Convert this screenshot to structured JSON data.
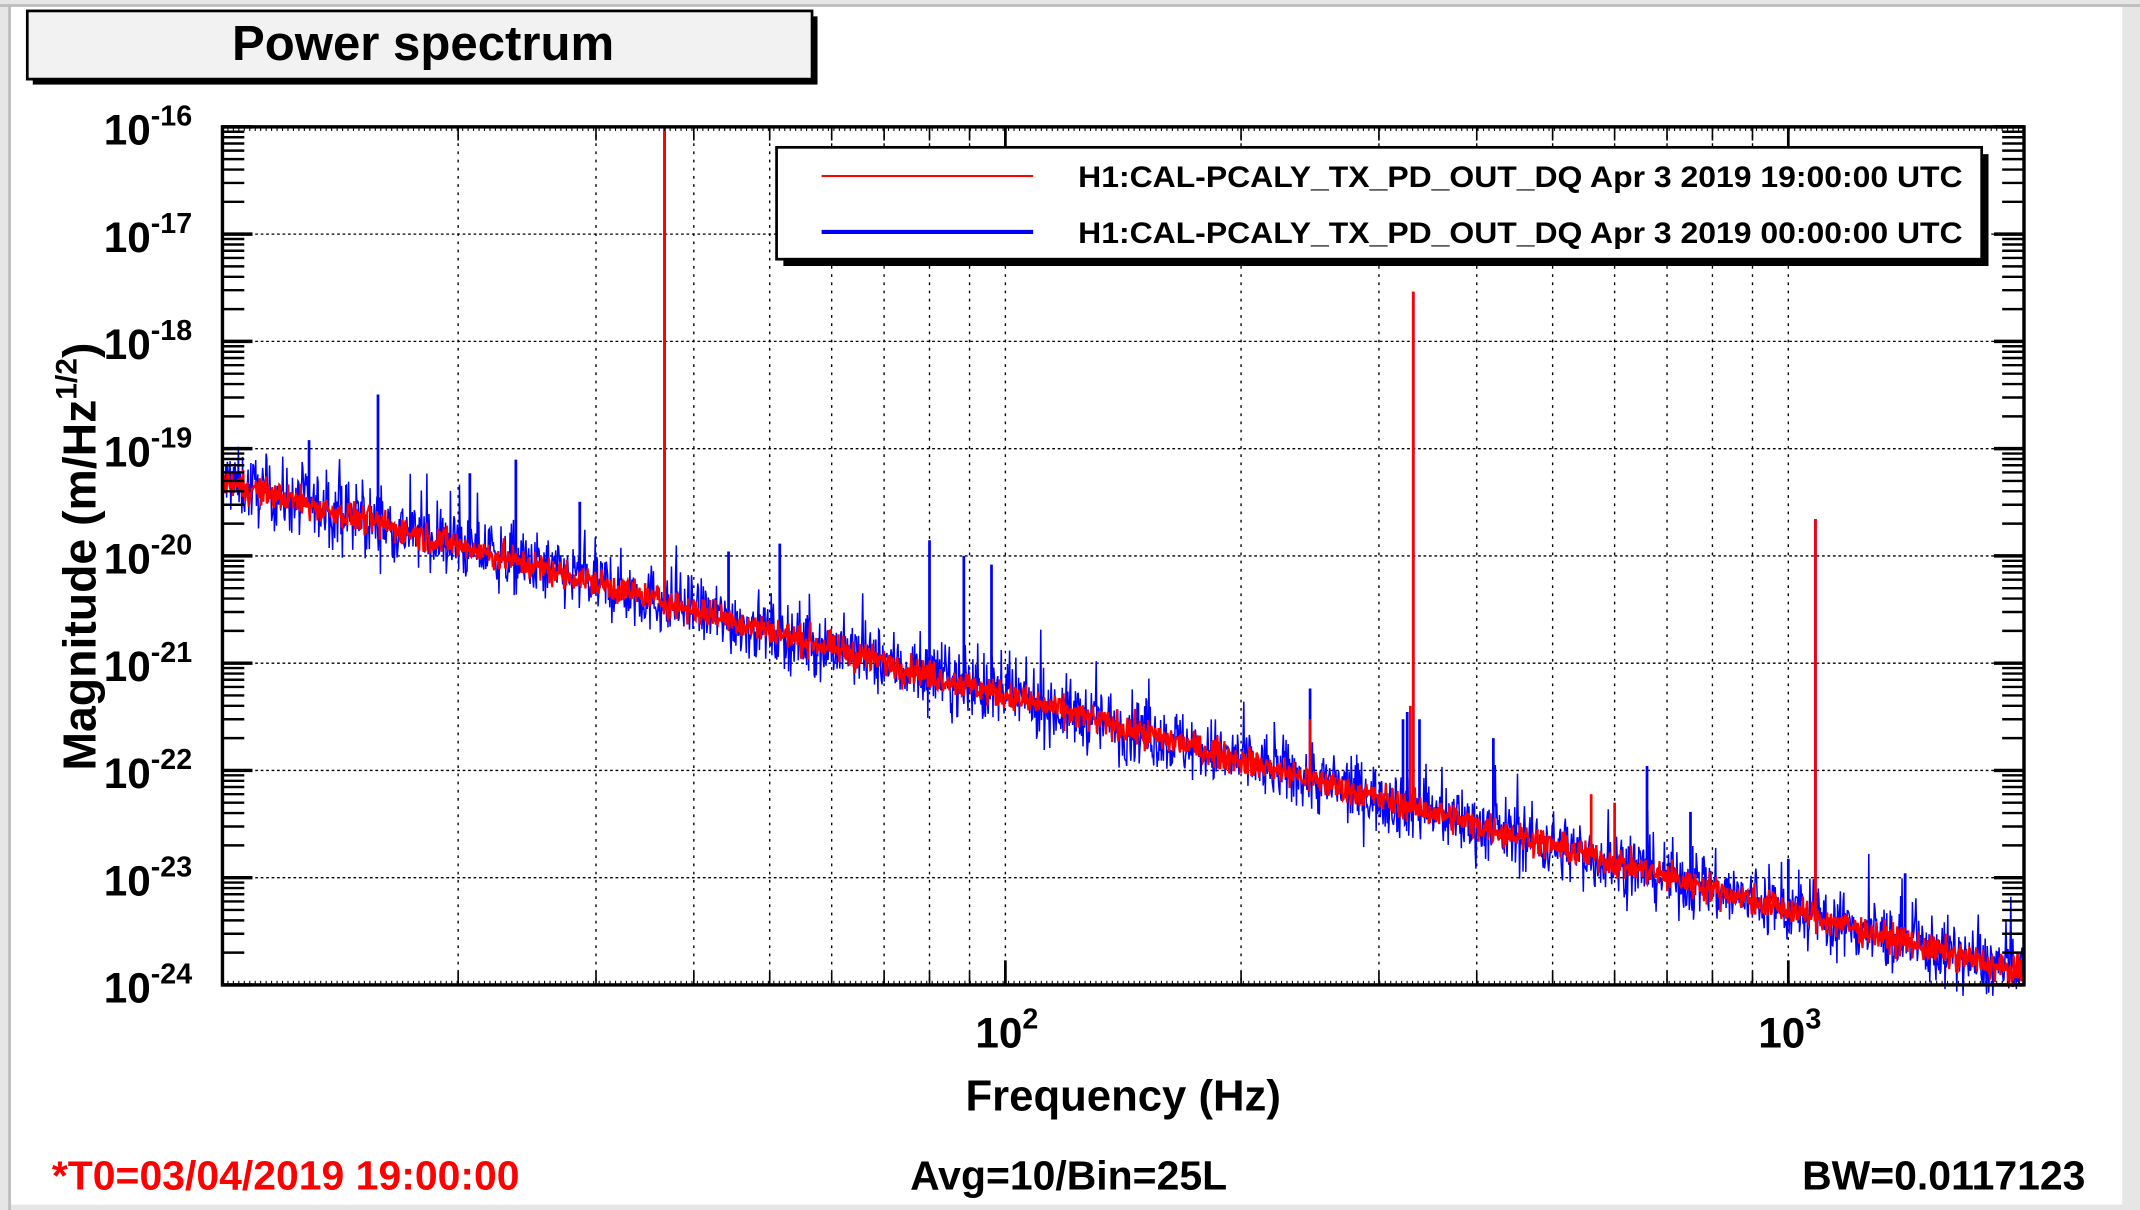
{
  "window": {
    "title": "Power spectrum"
  },
  "chart_data": {
    "type": "line",
    "title": "Power spectrum",
    "xlabel": "Frequency (Hz)",
    "ylabel": {
      "text": "Magnitude (m/Hz",
      "sup": "1/2",
      "close": ")"
    },
    "xscale": "log",
    "yscale": "log",
    "xlim": [
      10,
      2000
    ],
    "ylim": [
      1e-24,
      1e-16
    ],
    "grid": true,
    "legend_position": "top-right",
    "x_ticks": [
      {
        "base": "10",
        "exp": "2",
        "value": 100
      },
      {
        "base": "10",
        "exp": "3",
        "value": 1000
      }
    ],
    "y_ticks": [
      {
        "base": "10",
        "exp": "-16",
        "value": -16
      },
      {
        "base": "10",
        "exp": "-17",
        "value": -17
      },
      {
        "base": "10",
        "exp": "-18",
        "value": -18
      },
      {
        "base": "10",
        "exp": "-19",
        "value": -19
      },
      {
        "base": "10",
        "exp": "-20",
        "value": -20
      },
      {
        "base": "10",
        "exp": "-21",
        "value": -21
      },
      {
        "base": "10",
        "exp": "-22",
        "value": -22
      },
      {
        "base": "10",
        "exp": "-23",
        "value": -23
      },
      {
        "base": "10",
        "exp": "-24",
        "value": -24
      }
    ],
    "series": [
      {
        "name": "H1:CAL-PCALY_TX_PD_OUT_DQ Apr 3 2019 00:00:00 UTC",
        "color": "#0000ff",
        "baseline": {
          "f0": 10,
          "value_at_f0": 5e-20,
          "power_law_index": -2
        },
        "noise_decades": 0.16,
        "peaks": [
          [
            12.9,
            1.2e-19
          ],
          [
            15.8,
            3.2e-19
          ],
          [
            20.7,
            5.9e-20
          ],
          [
            23.7,
            7.9e-20
          ],
          [
            28.6,
            3.2e-20
          ],
          [
            36.7,
            1e-16
          ],
          [
            44.3,
            1.1e-20
          ],
          [
            51.5,
            1.3e-20
          ],
          [
            80,
            1.4e-20
          ],
          [
            88.5,
            1e-20
          ],
          [
            96,
            8.3e-21
          ],
          [
            245,
            5.8e-22
          ],
          [
            322,
            3e-22
          ],
          [
            326,
            3.5e-22
          ],
          [
            331.9,
            2.9e-18
          ],
          [
            338,
            3e-22
          ],
          [
            420,
            2e-22
          ],
          [
            660,
            1.1e-22
          ],
          [
            750,
            4.1e-23
          ],
          [
            1000,
            1.5e-23
          ],
          [
            1083,
            2.2e-20
          ],
          [
            1410,
            1.1e-23
          ]
        ]
      },
      {
        "name": "H1:CAL-PCALY_TX_PD_OUT_DQ Apr 3 2019 19:00:00 UTC",
        "color": "#ff0000",
        "baseline": {
          "f0": 10,
          "value_at_f0": 5e-20,
          "power_law_index": -2
        },
        "noise_decades": 0.07,
        "peaks": [
          [
            36.7,
            1e-16
          ],
          [
            331.9,
            2.9e-18
          ],
          [
            329,
            4e-22
          ],
          [
            245,
            3e-22
          ],
          [
            1083,
            2.2e-20
          ],
          [
            560,
            6e-23
          ],
          [
            600,
            5e-23
          ]
        ]
      }
    ]
  },
  "footer": {
    "t0": "*T0=03/04/2019 19:00:00",
    "avg": "Avg=10/Bin=25L",
    "bw": "BW=0.0117123"
  },
  "colors": {
    "t0": "#ff0000",
    "title_box": "#f2f2f2"
  }
}
